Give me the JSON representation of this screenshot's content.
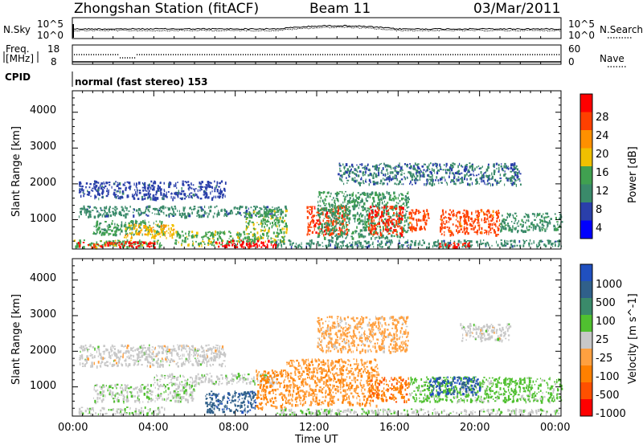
{
  "header": {
    "title": "Zhongshan Station (fitACF)",
    "beam": "Beam 11",
    "date": "03/Mar/2011"
  },
  "top_panels": {
    "nsky_label": "N.Sky",
    "nsearch_label": "N.Search",
    "nsky_ticks": [
      "10^5",
      "10^0"
    ],
    "nsearch_ticks": [
      "10^5",
      "10^0"
    ],
    "freq_label_line1": "Freq.",
    "freq_label_line2": "[MHz]",
    "freq_ticks": [
      "18",
      "8"
    ],
    "nave_label": "Nave",
    "nave_ticks": [
      "60",
      "0"
    ],
    "cpid_label": "CPID",
    "cpid_text": "normal (fast stereo) 153"
  },
  "power_panel": {
    "ylabel": "Slant Range [km]",
    "yticks": [
      "4000",
      "3000",
      "2000",
      "1000"
    ],
    "colorbar_label": "Power [dB]",
    "colorbar_ticks": [
      "28",
      "24",
      "20",
      "16",
      "12",
      "8",
      "4"
    ],
    "colors": [
      "#0000ff",
      "#2a3faa",
      "#3a8a6a",
      "#40a050",
      "#f0c000",
      "#ff9000",
      "#ff4000",
      "#ff0000"
    ]
  },
  "velocity_panel": {
    "ylabel": "Slant Range [km]",
    "yticks": [
      "4000",
      "3000",
      "2000",
      "1000"
    ],
    "colorbar_label": "Velocity [m s^-1]",
    "colorbar_ticks": [
      "1000",
      "500",
      "100",
      "25",
      "-25",
      "-100",
      "-500",
      "-1000"
    ],
    "colors": [
      "#2050c0",
      "#30608a",
      "#3a8a6a",
      "#50c030",
      "#c8c8c8",
      "#ffa040",
      "#ff8000",
      "#ff5000",
      "#ff0000"
    ]
  },
  "xaxis": {
    "ticks": [
      "00:00",
      "04:00",
      "08:00",
      "12:00",
      "16:00",
      "20:00",
      "00:00"
    ],
    "label": "Time UT"
  },
  "chart_data": [
    {
      "type": "heatmap",
      "title": "Zhongshan Station (fitACF) Beam 11 03/Mar/2011",
      "xlabel": "Time UT",
      "ylabel": "Slant Range [km]",
      "xlim": [
        0,
        24
      ],
      "ylim": [
        180,
        4600
      ],
      "colorbar": "Power [dB]",
      "clim": [
        0,
        30
      ],
      "blobs": [
        {
          "t0": 0.0,
          "t1": 4.5,
          "r0": 250,
          "r1": 450,
          "v": 14
        },
        {
          "t0": 0.2,
          "t1": 4.0,
          "r0": 250,
          "r1": 400,
          "v": 27
        },
        {
          "t0": 0.3,
          "t1": 7.5,
          "r0": 1600,
          "r1": 2100,
          "v": 6
        },
        {
          "t0": 0.3,
          "t1": 10.5,
          "r0": 1100,
          "r1": 1400,
          "v": 9
        },
        {
          "t0": 1.0,
          "t1": 4.5,
          "r0": 600,
          "r1": 1000,
          "v": 12
        },
        {
          "t0": 2.5,
          "t1": 5.0,
          "r0": 500,
          "r1": 900,
          "v": 18
        },
        {
          "t0": 5.0,
          "t1": 9.0,
          "r0": 300,
          "r1": 700,
          "v": 14
        },
        {
          "t0": 7.0,
          "t1": 10.0,
          "r0": 250,
          "r1": 450,
          "v": 28
        },
        {
          "t0": 8.5,
          "t1": 10.5,
          "r0": 400,
          "r1": 1300,
          "v": 14
        },
        {
          "t0": 11.5,
          "t1": 13.5,
          "r0": 600,
          "r1": 1400,
          "v": 25
        },
        {
          "t0": 12.0,
          "t1": 16.5,
          "r0": 500,
          "r1": 1800,
          "v": 11
        },
        {
          "t0": 14.5,
          "t1": 16.2,
          "r0": 600,
          "r1": 1400,
          "v": 26
        },
        {
          "t0": 16.5,
          "t1": 17.5,
          "r0": 700,
          "r1": 1300,
          "v": 24
        },
        {
          "t0": 18.0,
          "t1": 21.0,
          "r0": 600,
          "r1": 1300,
          "v": 24
        },
        {
          "t0": 13.0,
          "t1": 22.0,
          "r0": 2000,
          "r1": 2600,
          "v": 8
        },
        {
          "t0": 21.0,
          "t1": 24.0,
          "r0": 700,
          "r1": 1200,
          "v": 10
        },
        {
          "t0": 10.0,
          "t1": 24.0,
          "r0": 250,
          "r1": 450,
          "v": 9
        },
        {
          "t0": 18.0,
          "t1": 19.5,
          "r0": 250,
          "r1": 400,
          "v": 27
        }
      ]
    },
    {
      "type": "heatmap",
      "title": "",
      "xlabel": "Time UT",
      "ylabel": "Slant Range [km]",
      "xlim": [
        0,
        24
      ],
      "ylim": [
        180,
        4600
      ],
      "colorbar": "Velocity [m s^-1]",
      "clim": [
        -1000,
        1000
      ],
      "blobs": [
        {
          "t0": 0.3,
          "t1": 7.5,
          "r0": 1600,
          "r1": 2200,
          "v": 0
        },
        {
          "t0": 0.3,
          "t1": 4.5,
          "r0": 250,
          "r1": 450,
          "v": 60
        },
        {
          "t0": 1.0,
          "t1": 6.0,
          "r0": 600,
          "r1": 1100,
          "v": 80
        },
        {
          "t0": 4.0,
          "t1": 10.0,
          "r0": 1100,
          "r1": 1400,
          "v": 40
        },
        {
          "t0": 6.5,
          "t1": 9.0,
          "r0": 300,
          "r1": 900,
          "v": 700
        },
        {
          "t0": 9.0,
          "t1": 10.5,
          "r0": 400,
          "r1": 1500,
          "v": -400
        },
        {
          "t0": 10.5,
          "t1": 15.0,
          "r0": 500,
          "r1": 1800,
          "v": -300
        },
        {
          "t0": 12.0,
          "t1": 16.5,
          "r0": 2000,
          "r1": 3000,
          "v": -200
        },
        {
          "t0": 14.5,
          "t1": 16.5,
          "r0": 600,
          "r1": 1300,
          "v": -500
        },
        {
          "t0": 16.5,
          "t1": 24.0,
          "r0": 600,
          "r1": 1300,
          "v": 200
        },
        {
          "t0": 17.5,
          "t1": 20.0,
          "r0": 800,
          "r1": 1300,
          "v": 800
        },
        {
          "t0": 19.0,
          "t1": 21.5,
          "r0": 2300,
          "r1": 2800,
          "v": 0
        },
        {
          "t0": 10.0,
          "t1": 24.0,
          "r0": 250,
          "r1": 400,
          "v": 70
        }
      ]
    }
  ]
}
